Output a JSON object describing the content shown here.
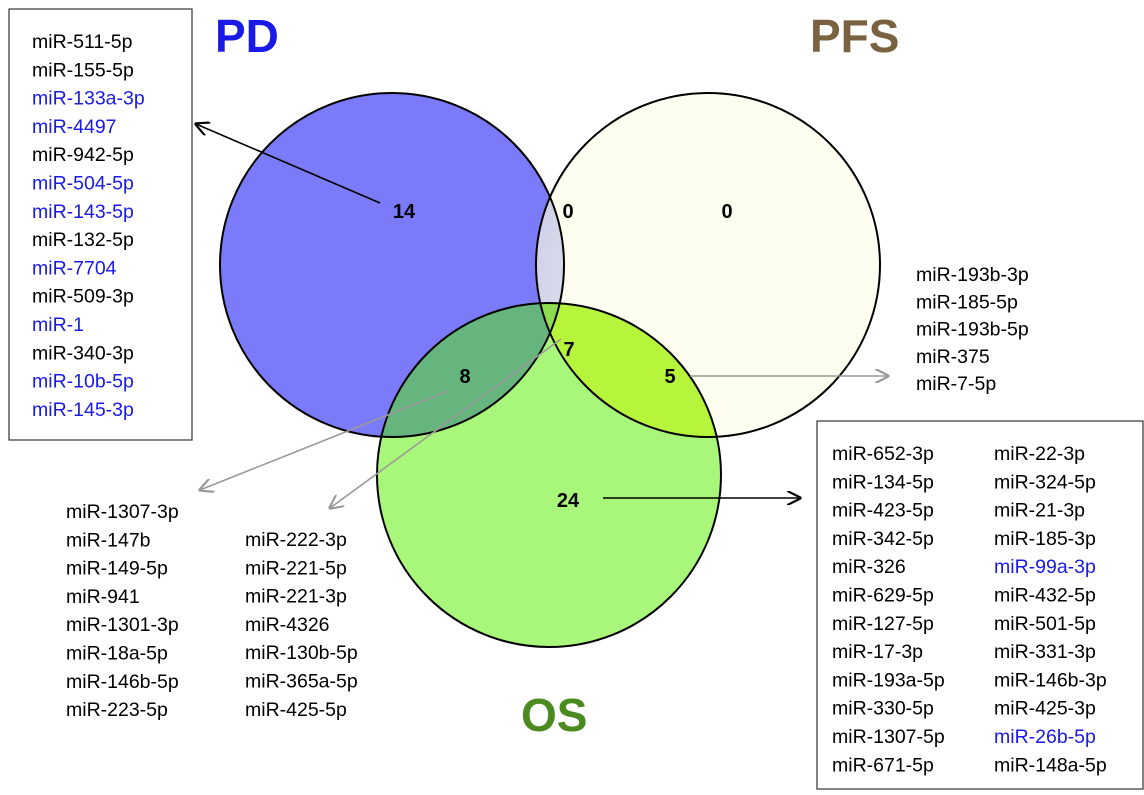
{
  "titles": {
    "pd": {
      "text": "PD",
      "color": "#1a1ae6"
    },
    "pfs": {
      "text": "PFS",
      "color": "#7a6140"
    },
    "os": {
      "text": "OS",
      "color": "#4a8a1e"
    }
  },
  "counts": {
    "pd_only": "14",
    "pd_pfs": "0",
    "pfs_only": "0",
    "all_three": "7",
    "pd_os": "8",
    "pfs_os": "5",
    "os_only": "24"
  },
  "colors": {
    "pd_fill": "#7b7bfa",
    "pfs_fill": "#fdfdf0",
    "os_fill": "#a8f77a",
    "highlight": "#1a1ae6",
    "normal": "#000000"
  },
  "lists": {
    "pd_only": [
      {
        "name": "miR-511-5p",
        "highlight": false
      },
      {
        "name": "miR-155-5p",
        "highlight": false
      },
      {
        "name": "miR-133a-3p",
        "highlight": true
      },
      {
        "name": "miR-4497",
        "highlight": true
      },
      {
        "name": "miR-942-5p",
        "highlight": false
      },
      {
        "name": "miR-504-5p",
        "highlight": true
      },
      {
        "name": "miR-143-5p",
        "highlight": true
      },
      {
        "name": "miR-132-5p",
        "highlight": false
      },
      {
        "name": "miR-7704",
        "highlight": true
      },
      {
        "name": "miR-509-3p",
        "highlight": false
      },
      {
        "name": "miR-1",
        "highlight": true
      },
      {
        "name": "miR-340-3p",
        "highlight": false
      },
      {
        "name": "miR-10b-5p",
        "highlight": true
      },
      {
        "name": "miR-145-3p",
        "highlight": true
      }
    ],
    "pfs_os": [
      {
        "name": "miR-193b-3p",
        "highlight": false
      },
      {
        "name": "miR-185-5p",
        "highlight": false
      },
      {
        "name": "miR-193b-5p",
        "highlight": false
      },
      {
        "name": "miR-375",
        "highlight": false
      },
      {
        "name": "miR-7-5p",
        "highlight": false
      }
    ],
    "pd_os": [
      {
        "name": "miR-1307-3p",
        "highlight": false
      },
      {
        "name": "miR-147b",
        "highlight": false
      },
      {
        "name": "miR-149-5p",
        "highlight": false
      },
      {
        "name": "miR-941",
        "highlight": false
      },
      {
        "name": "miR-1301-3p",
        "highlight": false
      },
      {
        "name": "miR-18a-5p",
        "highlight": false
      },
      {
        "name": "miR-146b-5p",
        "highlight": false
      },
      {
        "name": "miR-223-5p",
        "highlight": false
      }
    ],
    "all_three": [
      {
        "name": "miR-222-3p",
        "highlight": false
      },
      {
        "name": "miR-221-5p",
        "highlight": false
      },
      {
        "name": "miR-221-3p",
        "highlight": false
      },
      {
        "name": "miR-4326",
        "highlight": false
      },
      {
        "name": "miR-130b-5p",
        "highlight": false
      },
      {
        "name": "miR-365a-5p",
        "highlight": false
      },
      {
        "name": "miR-425-5p",
        "highlight": false
      }
    ],
    "os_only_col1": [
      {
        "name": "miR-652-3p",
        "highlight": false
      },
      {
        "name": "miR-134-5p",
        "highlight": false
      },
      {
        "name": "miR-423-5p",
        "highlight": false
      },
      {
        "name": "miR-342-5p",
        "highlight": false
      },
      {
        "name": "miR-326",
        "highlight": false
      },
      {
        "name": "miR-629-5p",
        "highlight": false
      },
      {
        "name": "miR-127-5p",
        "highlight": false
      },
      {
        "name": "miR-17-3p",
        "highlight": false
      },
      {
        "name": "miR-193a-5p",
        "highlight": false
      },
      {
        "name": "miR-330-5p",
        "highlight": false
      },
      {
        "name": "miR-1307-5p",
        "highlight": false
      },
      {
        "name": "miR-671-5p",
        "highlight": false
      }
    ],
    "os_only_col2": [
      {
        "name": "miR-22-3p",
        "highlight": false
      },
      {
        "name": "miR-324-5p",
        "highlight": false
      },
      {
        "name": "miR-21-3p",
        "highlight": false
      },
      {
        "name": "miR-185-3p",
        "highlight": false
      },
      {
        "name": "miR-99a-3p",
        "highlight": true
      },
      {
        "name": "miR-432-5p",
        "highlight": false
      },
      {
        "name": "miR-501-5p",
        "highlight": false
      },
      {
        "name": "miR-331-3p",
        "highlight": false
      },
      {
        "name": "miR-146b-3p",
        "highlight": false
      },
      {
        "name": "miR-425-3p",
        "highlight": false
      },
      {
        "name": "miR-26b-5p",
        "highlight": true
      },
      {
        "name": "miR-148a-5p",
        "highlight": false
      }
    ]
  }
}
